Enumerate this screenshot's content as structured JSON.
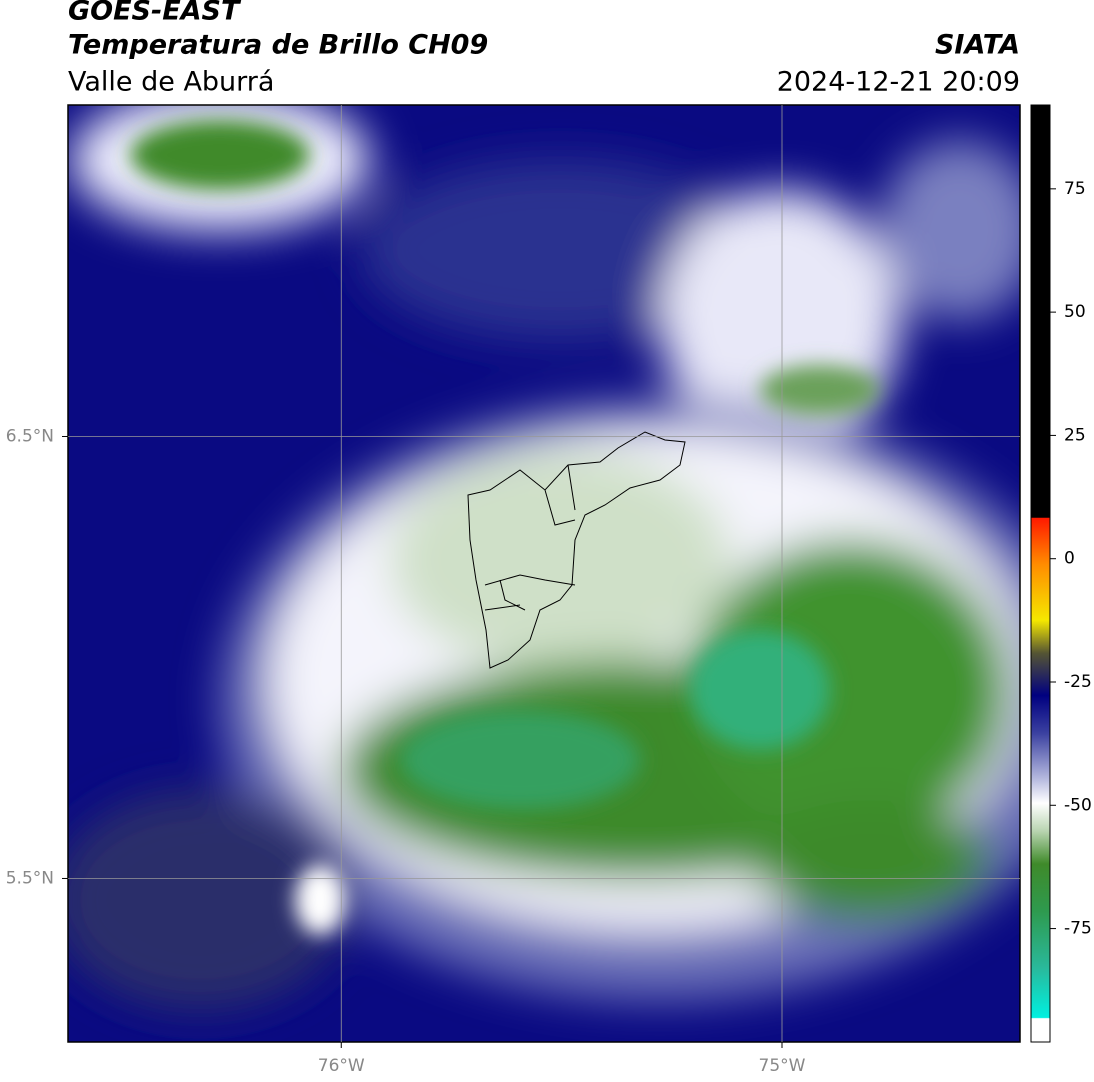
{
  "header": {
    "title": "GOES-EAST",
    "subtitle": "Temperatura de Brillo CH09",
    "region": "Valle de Aburrá",
    "source": "SIATA",
    "datetime": "2024-12-21 20:09"
  },
  "map": {
    "xlim": [
      -76.62,
      -74.46
    ],
    "ylim": [
      5.13,
      7.25
    ],
    "xticks": [
      {
        "value": -76,
        "label": "76°W"
      },
      {
        "value": -75,
        "label": "75°W"
      }
    ],
    "yticks": [
      {
        "value": 6.5,
        "label": "6.5°N"
      },
      {
        "value": 5.5,
        "label": "5.5°N"
      }
    ],
    "grid": true
  },
  "colorbar": {
    "lim": [
      -98,
      92
    ],
    "ticks": [
      75,
      50,
      25,
      0,
      -25,
      -50,
      -75
    ]
  }
}
